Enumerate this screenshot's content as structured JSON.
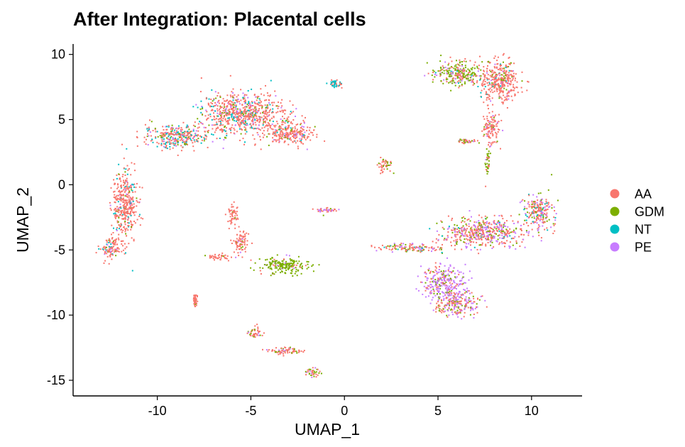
{
  "chart_data": {
    "type": "scatter",
    "title": "After Integration: Placental cells",
    "xlabel": "UMAP_1",
    "ylabel": "UMAP_2",
    "xlim": [
      -14.5,
      12.7
    ],
    "ylim": [
      -16.2,
      10.8
    ],
    "x_ticks": [
      -10,
      -5,
      0,
      5,
      10
    ],
    "x_tick_labels": [
      "-10",
      "-5",
      "0",
      "5",
      "10"
    ],
    "y_ticks": [
      10,
      5,
      0,
      -5,
      -10,
      -15
    ],
    "y_tick_labels": [
      "10",
      "5",
      "0",
      "-5",
      "-10",
      "-15"
    ],
    "legend_position": "right",
    "grid": false,
    "series": [
      {
        "name": "AA",
        "color": "#F8766D"
      },
      {
        "name": "GDM",
        "color": "#7CAE00"
      },
      {
        "name": "NT",
        "color": "#00BFC4"
      },
      {
        "name": "PE",
        "color": "#C77CFF"
      }
    ],
    "clusters": [
      {
        "center": [
          -11.8,
          -1.5
        ],
        "spread": [
          0.6,
          2.5
        ],
        "mix": [
          0.8,
          0.05,
          0.1,
          0.05
        ]
      },
      {
        "center": [
          -12.5,
          -4.8
        ],
        "spread": [
          0.6,
          0.7
        ],
        "mix": [
          0.85,
          0.05,
          0.05,
          0.05
        ]
      },
      {
        "center": [
          -9.0,
          3.8
        ],
        "spread": [
          1.6,
          0.8
        ],
        "mix": [
          0.6,
          0.1,
          0.2,
          0.1
        ]
      },
      {
        "center": [
          -5.5,
          5.5
        ],
        "spread": [
          2.0,
          1.4
        ],
        "mix": [
          0.7,
          0.1,
          0.1,
          0.1
        ]
      },
      {
        "center": [
          -3.0,
          4.0
        ],
        "spread": [
          1.2,
          0.8
        ],
        "mix": [
          0.75,
          0.1,
          0.05,
          0.1
        ]
      },
      {
        "center": [
          -6.0,
          -2.3
        ],
        "spread": [
          0.25,
          0.8
        ],
        "mix": [
          0.95,
          0.05,
          0.0,
          0.0
        ]
      },
      {
        "center": [
          -5.6,
          -4.4
        ],
        "spread": [
          0.4,
          0.8
        ],
        "mix": [
          0.85,
          0.1,
          0.0,
          0.05
        ]
      },
      {
        "center": [
          -6.8,
          -5.5
        ],
        "spread": [
          0.7,
          0.2
        ],
        "mix": [
          0.9,
          0.05,
          0.0,
          0.05
        ]
      },
      {
        "center": [
          -3.2,
          -6.2
        ],
        "spread": [
          1.2,
          0.6
        ],
        "mix": [
          0.05,
          0.9,
          0.0,
          0.05
        ]
      },
      {
        "center": [
          -8.0,
          -8.8
        ],
        "spread": [
          0.1,
          0.4
        ],
        "mix": [
          0.9,
          0.1,
          0.0,
          0.0
        ]
      },
      {
        "center": [
          -4.8,
          -11.2
        ],
        "spread": [
          0.3,
          0.4
        ],
        "mix": [
          0.7,
          0.2,
          0.0,
          0.1
        ]
      },
      {
        "center": [
          -3.3,
          -12.7
        ],
        "spread": [
          0.9,
          0.3
        ],
        "mix": [
          0.7,
          0.2,
          0.0,
          0.1
        ]
      },
      {
        "center": [
          -1.7,
          -14.3
        ],
        "spread": [
          0.4,
          0.3
        ],
        "mix": [
          0.5,
          0.4,
          0.0,
          0.1
        ]
      },
      {
        "center": [
          -0.5,
          7.8
        ],
        "spread": [
          0.3,
          0.3
        ],
        "mix": [
          0.4,
          0.0,
          0.6,
          0.0
        ]
      },
      {
        "center": [
          -1.0,
          -1.9
        ],
        "spread": [
          0.5,
          0.15
        ],
        "mix": [
          0.5,
          0.1,
          0.0,
          0.4
        ]
      },
      {
        "center": [
          2.2,
          1.6
        ],
        "spread": [
          0.3,
          0.6
        ],
        "mix": [
          0.7,
          0.3,
          0.0,
          0.0
        ]
      },
      {
        "center": [
          6.0,
          8.6
        ],
        "spread": [
          1.2,
          0.8
        ],
        "mix": [
          0.3,
          0.55,
          0.05,
          0.1
        ]
      },
      {
        "center": [
          8.3,
          8.0
        ],
        "spread": [
          1.0,
          1.4
        ],
        "mix": [
          0.8,
          0.1,
          0.05,
          0.05
        ]
      },
      {
        "center": [
          7.8,
          4.5
        ],
        "spread": [
          0.4,
          1.2
        ],
        "mix": [
          0.8,
          0.1,
          0.0,
          0.1
        ]
      },
      {
        "center": [
          7.6,
          1.8
        ],
        "spread": [
          0.15,
          1.0
        ],
        "mix": [
          0.3,
          0.6,
          0.0,
          0.1
        ]
      },
      {
        "center": [
          6.5,
          3.4
        ],
        "spread": [
          0.5,
          0.15
        ],
        "mix": [
          0.5,
          0.4,
          0.0,
          0.1
        ]
      },
      {
        "center": [
          3.5,
          -4.8
        ],
        "spread": [
          1.7,
          0.3
        ],
        "mix": [
          0.55,
          0.15,
          0.05,
          0.25
        ]
      },
      {
        "center": [
          7.5,
          -3.6
        ],
        "spread": [
          2.0,
          1.0
        ],
        "mix": [
          0.5,
          0.15,
          0.05,
          0.3
        ]
      },
      {
        "center": [
          10.3,
          -2.0
        ],
        "spread": [
          0.7,
          1.2
        ],
        "mix": [
          0.55,
          0.15,
          0.1,
          0.2
        ]
      },
      {
        "center": [
          5.3,
          -7.5
        ],
        "spread": [
          1.0,
          1.2
        ],
        "mix": [
          0.25,
          0.15,
          0.0,
          0.6
        ]
      },
      {
        "center": [
          6.0,
          -9.2
        ],
        "spread": [
          1.0,
          0.8
        ],
        "mix": [
          0.45,
          0.2,
          0.0,
          0.35
        ]
      }
    ]
  }
}
